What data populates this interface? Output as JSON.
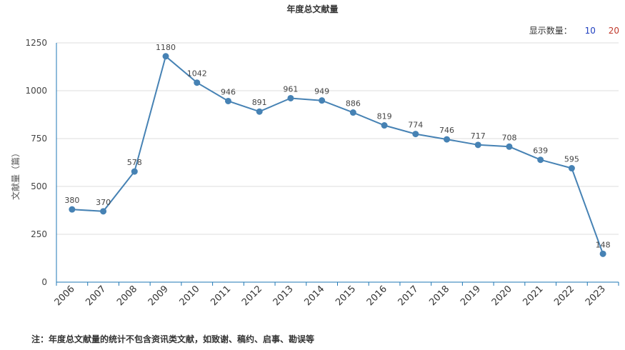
{
  "chart_data": {
    "type": "line",
    "title": "年度总文献量",
    "ylabel": "文献量（篇）",
    "xlabel": "",
    "x": [
      "2006",
      "2007",
      "2008",
      "2009",
      "2010",
      "2011",
      "2012",
      "2013",
      "2014",
      "2015",
      "2016",
      "2017",
      "2018",
      "2019",
      "2020",
      "2021",
      "2022",
      "2023"
    ],
    "values": [
      380,
      370,
      578,
      1180,
      1042,
      946,
      891,
      961,
      949,
      886,
      819,
      774,
      746,
      717,
      708,
      639,
      595,
      148
    ],
    "ylim": [
      0,
      1250
    ],
    "yticks": [
      0,
      250,
      500,
      750,
      1000,
      1250
    ],
    "grid": true,
    "line_color": "#4682b4"
  },
  "display_count": {
    "label": "显示数量：",
    "options": [
      "10",
      "20"
    ]
  },
  "footnote": "注：年度总文献量的统计不包含资讯类文献，如致谢、稿约、启事、勘误等"
}
